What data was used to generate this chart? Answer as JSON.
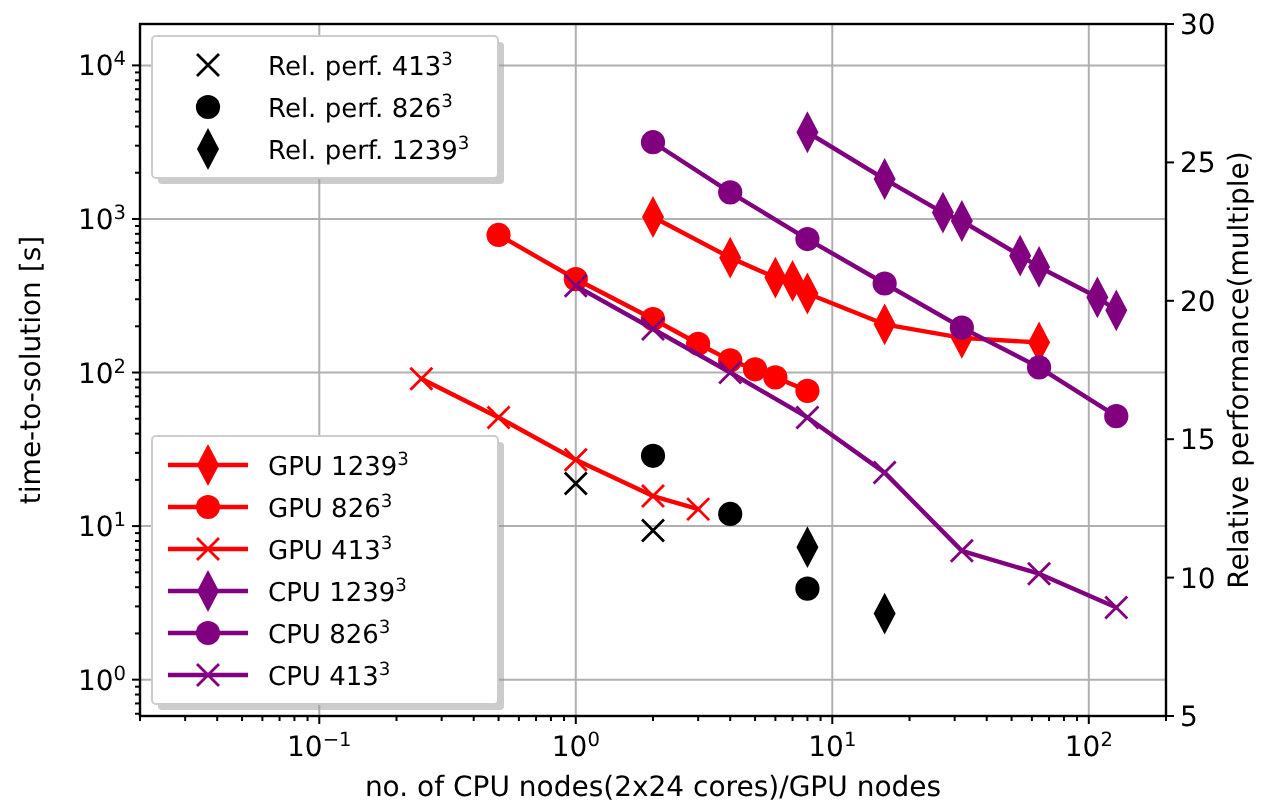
{
  "chart_data": {
    "type": "line",
    "xlabel": "no. of CPU nodes(2x24 cores)/GPU nodes",
    "ylabel": "time-to-solution [s]",
    "y2label": "Relative performance(multiple)",
    "log": "xy",
    "grid": true,
    "legend": "left",
    "line_style": "solid",
    "xlim": [
      0.02,
      200
    ],
    "xticks": [
      {
        "value": 0.1,
        "label": "10$^{−1}$"
      },
      {
        "value": 1,
        "label": "10$^{0}$"
      },
      {
        "value": 10,
        "label": "10$^{1}$"
      },
      {
        "value": 100,
        "label": "10$^{2}$"
      }
    ],
    "ylim": [
      0.58,
      18600
    ],
    "yticks": [
      {
        "value": 1,
        "label": "10$^{0}$"
      },
      {
        "value": 10,
        "label": "10$^{1}$"
      },
      {
        "value": 100,
        "label": "10$^{2}$"
      },
      {
        "value": 1000,
        "label": "10$^{3}$"
      },
      {
        "value": 10000,
        "label": "10$^{4}$"
      }
    ],
    "y2lim": [
      5,
      30
    ],
    "y2ticks": [
      5,
      10,
      15,
      20,
      25,
      30
    ],
    "series": [
      {
        "name": "Rel. perf.  413$^{3}$",
        "type": "scatter",
        "axis": "y2",
        "marker": "cross",
        "color": "#000000",
        "x": [
          1,
          2
        ],
        "values": [
          13.4,
          11.7
        ]
      },
      {
        "name": "Rel. perf.  826$^{3}$",
        "type": "scatter",
        "axis": "y2",
        "marker": "circle",
        "color": "#000000",
        "x": [
          2,
          4,
          8
        ],
        "values": [
          14.4,
          12.3,
          9.6
        ]
      },
      {
        "name": "Rel. perf.  1239$^{3}$",
        "type": "scatter",
        "axis": "y2",
        "marker": "diamond",
        "color": "#000000",
        "x": [
          8,
          16
        ],
        "values": [
          11.1,
          8.7
        ]
      },
      {
        "name": "GPU 1239$^{3}$",
        "marker": "diamond",
        "color": "#ff0000",
        "x": [
          2,
          4,
          6,
          7,
          8,
          16,
          32,
          64
        ],
        "values": [
          1030,
          560,
          415,
          395,
          327,
          206,
          168,
          157
        ]
      },
      {
        "name": "GPU 826$^{3}$",
        "marker": "circle",
        "color": "#ff0000",
        "x": [
          0.5,
          1,
          2,
          3,
          4,
          5,
          6,
          8
        ],
        "values": [
          787,
          406,
          223,
          154,
          120,
          105,
          93,
          76
        ]
      },
      {
        "name": "GPU 413$^{3}$",
        "marker": "cross",
        "color": "#ff0000",
        "x": [
          0.25,
          0.5,
          1,
          2,
          3
        ],
        "values": [
          91,
          51,
          27,
          15.7,
          12.9
        ]
      },
      {
        "name": "CPU 1239$^{3}$",
        "marker": "diamond",
        "color": "#800080",
        "x": [
          8,
          16,
          27,
          32,
          54,
          64,
          108,
          128
        ],
        "values": [
          3670,
          1820,
          1100,
          970,
          577,
          487,
          309,
          254
        ]
      },
      {
        "name": "CPU 826$^{3}$",
        "marker": "circle",
        "color": "#800080",
        "x": [
          2,
          4,
          8,
          16,
          32,
          64,
          128
        ],
        "values": [
          3160,
          1490,
          740,
          380,
          196,
          108,
          52
        ]
      },
      {
        "name": "CPU 413$^{3}$",
        "marker": "cross",
        "color": "#800080",
        "x": [
          1,
          2,
          4,
          8,
          16,
          32,
          64,
          128
        ],
        "values": [
          367,
          192,
          100,
          51,
          22.3,
          6.9,
          4.9,
          2.95
        ]
      }
    ]
  }
}
